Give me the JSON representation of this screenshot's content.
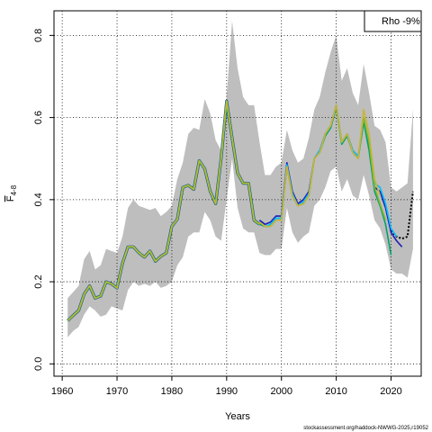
{
  "chart_data": {
    "type": "line",
    "xlabel": "Years",
    "ylabel": "F",
    "ylabel_sub": "4-8",
    "xlim": [
      1958.5,
      2025.5
    ],
    "ylim": [
      -0.03,
      0.86
    ],
    "xticks": [
      1960,
      1970,
      1980,
      1990,
      2000,
      2010,
      2020
    ],
    "yticks": [
      0.0,
      0.2,
      0.4,
      0.6,
      0.8
    ],
    "ytick_labels": [
      "0.0",
      "0.2",
      "0.4",
      "0.6",
      "0.8"
    ],
    "grid": true,
    "legend": {
      "text": "Rho -9%",
      "position": "top-right"
    },
    "source": "stockassessment.org/haddock-NWWG-2025,r19052",
    "band_color": "#bebebe",
    "band": {
      "x": [
        1961,
        1962,
        1963,
        1964,
        1965,
        1966,
        1967,
        1968,
        1969,
        1970,
        1971,
        1972,
        1973,
        1974,
        1975,
        1976,
        1977,
        1978,
        1979,
        1980,
        1981,
        1982,
        1983,
        1984,
        1985,
        1986,
        1987,
        1988,
        1989,
        1990,
        1991,
        1992,
        1993,
        1994,
        1995,
        1996,
        1997,
        1998,
        1999,
        2000,
        2001,
        2002,
        2003,
        2004,
        2005,
        2006,
        2007,
        2008,
        2009,
        2010,
        2011,
        2012,
        2013,
        2014,
        2015,
        2016,
        2017,
        2018,
        2019,
        2020,
        2021,
        2022,
        2023,
        2024
      ],
      "upper": [
        0.16,
        0.175,
        0.19,
        0.255,
        0.275,
        0.23,
        0.24,
        0.28,
        0.275,
        0.27,
        0.31,
        0.38,
        0.4,
        0.385,
        0.38,
        0.375,
        0.38,
        0.36,
        0.37,
        0.385,
        0.45,
        0.49,
        0.56,
        0.575,
        0.57,
        0.645,
        0.61,
        0.545,
        0.52,
        0.65,
        0.835,
        0.72,
        0.65,
        0.63,
        0.63,
        0.54,
        0.46,
        0.46,
        0.48,
        0.49,
        0.57,
        0.52,
        0.49,
        0.5,
        0.55,
        0.62,
        0.65,
        0.71,
        0.76,
        0.8,
        0.69,
        0.72,
        0.66,
        0.63,
        0.73,
        0.66,
        0.58,
        0.57,
        0.54,
        0.43,
        0.42,
        0.43,
        0.44,
        0.62
      ],
      "lower": [
        0.065,
        0.08,
        0.09,
        0.12,
        0.14,
        0.13,
        0.115,
        0.12,
        0.14,
        0.135,
        0.13,
        0.18,
        0.2,
        0.19,
        0.195,
        0.19,
        0.2,
        0.185,
        0.19,
        0.2,
        0.24,
        0.26,
        0.31,
        0.32,
        0.32,
        0.37,
        0.35,
        0.31,
        0.3,
        0.4,
        0.5,
        0.38,
        0.33,
        0.32,
        0.32,
        0.27,
        0.265,
        0.265,
        0.28,
        0.28,
        0.38,
        0.32,
        0.295,
        0.31,
        0.32,
        0.385,
        0.4,
        0.43,
        0.47,
        0.48,
        0.42,
        0.45,
        0.41,
        0.4,
        0.46,
        0.41,
        0.35,
        0.33,
        0.29,
        0.23,
        0.22,
        0.22,
        0.21,
        0.28
      ]
    },
    "base_x": [
      1961,
      1962,
      1963,
      1964,
      1965,
      1966,
      1967,
      1968,
      1969,
      1970,
      1971,
      1972,
      1973,
      1974,
      1975,
      1976,
      1977,
      1978,
      1979,
      1980,
      1981,
      1982,
      1983,
      1984,
      1985,
      1986,
      1987,
      1988,
      1989,
      1990,
      1991,
      1992,
      1993,
      1994,
      1995,
      1996
    ],
    "base_y": [
      0.105,
      0.118,
      0.13,
      0.17,
      0.19,
      0.16,
      0.165,
      0.2,
      0.195,
      0.185,
      0.245,
      0.285,
      0.285,
      0.27,
      0.26,
      0.275,
      0.25,
      0.262,
      0.27,
      0.335,
      0.352,
      0.43,
      0.435,
      0.425,
      0.495,
      0.475,
      0.42,
      0.39,
      0.5,
      0.64,
      0.55,
      0.465,
      0.44,
      0.44,
      0.35,
      0.34
    ],
    "series": [
      {
        "color": "#000000",
        "dashed": true,
        "x": [
          2020,
          2021,
          2022,
          2023,
          2024
        ],
        "y": [
          0.325,
          0.31,
          0.305,
          0.31,
          0.42
        ]
      },
      {
        "color": "#1f1fb4",
        "x": [
          1996,
          1997,
          1998,
          1999,
          2000,
          2001,
          2002,
          2003,
          2004,
          2005,
          2006,
          2007,
          2008,
          2009,
          2010,
          2011,
          2012,
          2013,
          2014,
          2015,
          2016,
          2017,
          2018,
          2019,
          2020,
          2021,
          2022
        ],
        "y": [
          0.35,
          0.34,
          0.345,
          0.36,
          0.36,
          0.49,
          0.42,
          0.39,
          0.4,
          0.42,
          0.5,
          0.52,
          0.56,
          0.58,
          0.63,
          0.54,
          0.56,
          0.52,
          0.505,
          0.59,
          0.53,
          0.43,
          0.42,
          0.38,
          0.32,
          0.3,
          0.285
        ]
      },
      {
        "color": "#00bfff",
        "x": [
          1996,
          1997,
          1998,
          1999,
          2000,
          2001,
          2002,
          2003,
          2004,
          2005,
          2006,
          2007,
          2008,
          2009,
          2010,
          2011,
          2012,
          2013,
          2014,
          2015,
          2016,
          2017,
          2018,
          2019,
          2020,
          2021
        ],
        "y": [
          0.345,
          0.335,
          0.34,
          0.355,
          0.355,
          0.485,
          0.415,
          0.385,
          0.395,
          0.415,
          0.5,
          0.52,
          0.56,
          0.58,
          0.625,
          0.54,
          0.56,
          0.52,
          0.505,
          0.595,
          0.535,
          0.44,
          0.43,
          0.39,
          0.33,
          0.31
        ]
      },
      {
        "color": "#00a070",
        "x": [
          1996,
          1997,
          1998,
          1999,
          2000,
          2001,
          2002,
          2003,
          2004,
          2005,
          2006,
          2007,
          2008,
          2009,
          2010,
          2011,
          2012,
          2013,
          2014,
          2015,
          2016,
          2017,
          2018,
          2019,
          2020
        ],
        "y": [
          0.34,
          0.335,
          0.335,
          0.35,
          0.35,
          0.48,
          0.41,
          0.385,
          0.39,
          0.41,
          0.5,
          0.515,
          0.555,
          0.575,
          0.625,
          0.535,
          0.555,
          0.515,
          0.5,
          0.59,
          0.52,
          0.42,
          0.385,
          0.34,
          0.265
        ]
      },
      {
        "color": "#7fba2a",
        "x": [
          1996,
          1997,
          1998,
          1999,
          2000,
          2001,
          2002,
          2003,
          2004,
          2005,
          2006,
          2007,
          2008,
          2009,
          2010,
          2011,
          2012,
          2013,
          2014,
          2015,
          2016,
          2017,
          2018,
          2019
        ],
        "y": [
          0.345,
          0.335,
          0.335,
          0.35,
          0.35,
          0.48,
          0.41,
          0.385,
          0.39,
          0.41,
          0.5,
          0.515,
          0.56,
          0.58,
          0.63,
          0.54,
          0.56,
          0.515,
          0.5,
          0.6,
          0.54,
          0.43,
          0.39,
          0.35
        ]
      },
      {
        "color": "#c8b43c",
        "x": [
          1996,
          1997,
          1998,
          1999,
          2000,
          2001,
          2002,
          2003,
          2004,
          2005,
          2006,
          2007,
          2008,
          2009,
          2010,
          2011,
          2012,
          2013,
          2014,
          2015,
          2016,
          2017,
          2018
        ],
        "y": [
          0.345,
          0.335,
          0.335,
          0.35,
          0.35,
          0.48,
          0.41,
          0.385,
          0.39,
          0.41,
          0.5,
          0.515,
          0.56,
          0.58,
          0.63,
          0.54,
          0.56,
          0.515,
          0.5,
          0.62,
          0.56,
          0.45,
          0.41
        ]
      }
    ],
    "base_colors": [
      "#1f1fb4",
      "#00a070",
      "#7fba2a",
      "#c8b43c"
    ]
  }
}
